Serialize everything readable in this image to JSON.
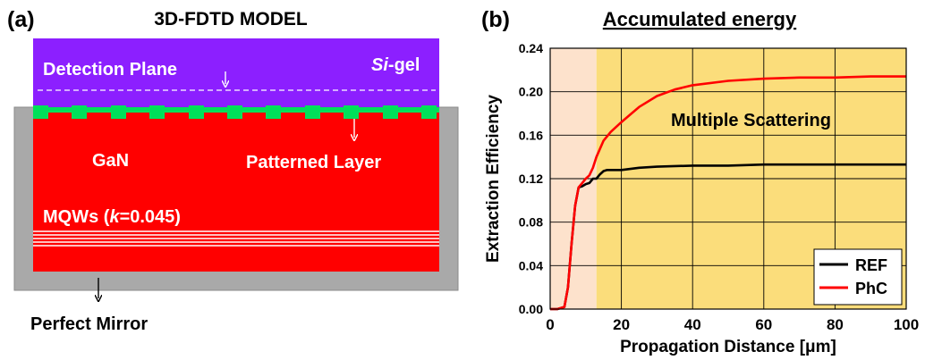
{
  "panel_a": {
    "label": "(a)",
    "title": "3D-FDTD MODEL",
    "detection_plane": "Detection Plane",
    "si_gel_italic": "Si",
    "si_gel_rest": "-gel",
    "gan": "GaN",
    "patterned_layer": "Patterned Layer",
    "mqws_prefix": "MQWs (",
    "mqws_k": "k",
    "mqws_suffix": "=0.045)",
    "perfect_mirror": "Perfect Mirror",
    "colors": {
      "si_gel": "#8c1fff",
      "gan": "#ff0000",
      "pattern": "#00e05a",
      "mirror": "#a9a9a9"
    }
  },
  "panel_b": {
    "label": "(b)",
    "title": "Accumulated energy",
    "annotation": "Multiple Scattering",
    "legend": {
      "ref": "REF",
      "phc": "PhC"
    }
  },
  "chart_data": {
    "type": "line",
    "title": "Accumulated energy",
    "xlabel": "Propagation Distance [μm]",
    "ylabel": "Extraction Efficiency",
    "xlim": [
      0,
      100
    ],
    "ylim": [
      0,
      0.24
    ],
    "xticks": [
      "0",
      "20",
      "40",
      "60",
      "80",
      "100"
    ],
    "yticks": [
      "0.00",
      "0.04",
      "0.08",
      "0.12",
      "0.16",
      "0.20",
      "0.24"
    ],
    "grid": true,
    "legend_position": "bottom-right",
    "shaded_regions": [
      {
        "x": [
          0,
          13
        ],
        "color": "#fde2cc"
      },
      {
        "x": [
          13,
          100
        ],
        "color": "#fbdd7b"
      }
    ],
    "series": [
      {
        "name": "REF",
        "color": "#000000",
        "x": [
          0,
          2,
          4,
          5,
          6,
          7,
          8,
          9,
          10,
          11,
          12,
          13,
          14,
          15,
          16,
          20,
          25,
          30,
          40,
          50,
          60,
          70,
          80,
          90,
          100
        ],
        "y": [
          0,
          0,
          0.002,
          0.02,
          0.06,
          0.095,
          0.112,
          0.113,
          0.115,
          0.116,
          0.12,
          0.12,
          0.124,
          0.127,
          0.128,
          0.128,
          0.13,
          0.131,
          0.132,
          0.132,
          0.133,
          0.133,
          0.133,
          0.133,
          0.133
        ]
      },
      {
        "name": "PhC",
        "color": "#ff0000",
        "x": [
          0,
          2,
          4,
          5,
          6,
          7,
          8,
          9,
          10,
          11,
          12,
          13,
          15,
          17,
          20,
          25,
          30,
          35,
          40,
          50,
          60,
          70,
          80,
          90,
          100
        ],
        "y": [
          0,
          0,
          0.002,
          0.02,
          0.06,
          0.095,
          0.112,
          0.116,
          0.12,
          0.123,
          0.13,
          0.14,
          0.155,
          0.163,
          0.172,
          0.186,
          0.196,
          0.202,
          0.206,
          0.21,
          0.212,
          0.213,
          0.213,
          0.214,
          0.214
        ]
      }
    ]
  }
}
